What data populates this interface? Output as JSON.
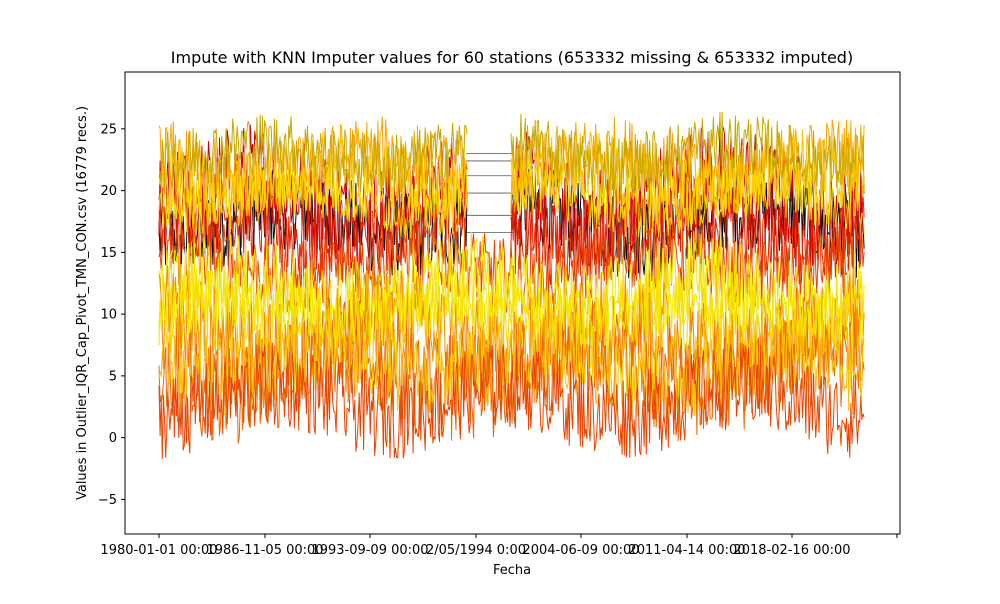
{
  "chart_data": {
    "type": "line",
    "title": "Impute with KNN Imputer values for 60 stations (653332 missing & 653332 imputed)",
    "xlabel": "Fecha",
    "ylabel": "Values in Outlier_IQR_Cap_Pivot_TMN_CON.csv (16779 recs.)",
    "x_tick_labels": [
      "1980-01-01 00:00",
      "1986-11-05 00:00",
      "1993-09-09 00:00",
      "2/05/1994 0:00",
      "2004-06-09 00:00",
      "2011-04-14 00:00",
      "2018-02-16 00:00"
    ],
    "y_ticks": [
      -5,
      0,
      5,
      10,
      15,
      20,
      25
    ],
    "ylim": [
      -7.8,
      29.6
    ],
    "n_series": 60,
    "n_records": 16779,
    "missing": 653332,
    "imputed": 653332,
    "series_colors": [
      "#000000",
      "#cc0000",
      "#e02000",
      "#e84400",
      "#ee6600",
      "#f48a00",
      "#f7a800",
      "#f9c000",
      "#fbd800",
      "#f5e500",
      "#c8a800"
    ],
    "approx_bands": [
      {
        "color": "#000000",
        "center": 17.5,
        "spread": 3.5
      },
      {
        "color": "#cc0000",
        "center": 19.5,
        "spread": 4.5
      },
      {
        "color": "#e02000",
        "center": 17.0,
        "spread": 3.5
      },
      {
        "color": "#e84400",
        "center": 14.0,
        "spread": 3.0
      },
      {
        "color": "#f7a800",
        "center": 22.0,
        "spread": 3.0
      },
      {
        "color": "#f9c000",
        "center": 21.0,
        "spread": 3.0
      },
      {
        "color": "#fbd800",
        "center": 19.5,
        "spread": 2.5
      },
      {
        "color": "#c8a800",
        "center": 23.0,
        "spread": 2.5
      },
      {
        "color": "#f5e500",
        "center": 12.0,
        "spread": 3.5
      },
      {
        "color": "#fbd800",
        "center": 9.0,
        "spread": 3.5
      },
      {
        "color": "#f48a00",
        "center": 8.0,
        "spread": 4.5
      },
      {
        "color": "#ee6600",
        "center": 5.5,
        "spread": 4.5
      },
      {
        "color": "#f9c000",
        "center": 6.0,
        "spread": 3.5
      },
      {
        "color": "#e84400",
        "center": 3.0,
        "spread": 3.5
      },
      {
        "color": "#f5e500",
        "center": 10.5,
        "spread": 2.5
      }
    ],
    "imputed_gap_lines": [
      23.0,
      22.4,
      21.2,
      19.8,
      18.0,
      16.6
    ]
  }
}
